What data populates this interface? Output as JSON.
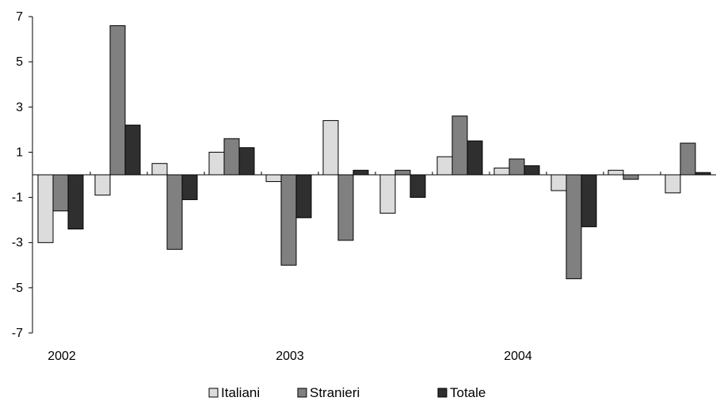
{
  "chart_data": {
    "type": "bar",
    "title": "",
    "xlabel": "",
    "ylabel": "",
    "ylim": [
      -7,
      7
    ],
    "yticks": [
      7,
      5,
      3,
      1,
      -1,
      -3,
      -5,
      -7
    ],
    "ytick_labels": [
      "7",
      "5",
      "3",
      "1",
      "-1",
      "-3",
      "-5",
      "-7"
    ],
    "x_labels": [
      {
        "label": "2002",
        "group_index": 0
      },
      {
        "label": "2003",
        "group_index": 4
      },
      {
        "label": "2004",
        "group_index": 8
      }
    ],
    "categories": [
      "g1",
      "g2",
      "g3",
      "g4",
      "g5",
      "g6",
      "g7",
      "g8",
      "g9",
      "g10",
      "g11",
      "g12"
    ],
    "series": [
      {
        "name": "Italiani",
        "color": "#dcdcdc",
        "values": [
          -3.0,
          -0.9,
          0.5,
          1.0,
          -0.3,
          2.4,
          -1.7,
          0.8,
          0.3,
          -0.7,
          0.2,
          -0.8
        ]
      },
      {
        "name": "Stranieri",
        "color": "#808080",
        "values": [
          -1.6,
          6.6,
          -3.3,
          1.6,
          -4.0,
          -2.9,
          0.2,
          2.6,
          0.7,
          -4.6,
          -0.2,
          1.4
        ]
      },
      {
        "name": "Totale",
        "color": "#2f2f2f",
        "values": [
          -2.4,
          2.2,
          -1.1,
          1.2,
          -1.9,
          0.2,
          -1.0,
          1.5,
          0.4,
          -2.3,
          0.0,
          0.1
        ]
      }
    ],
    "grid": false,
    "legend_position": "bottom"
  }
}
